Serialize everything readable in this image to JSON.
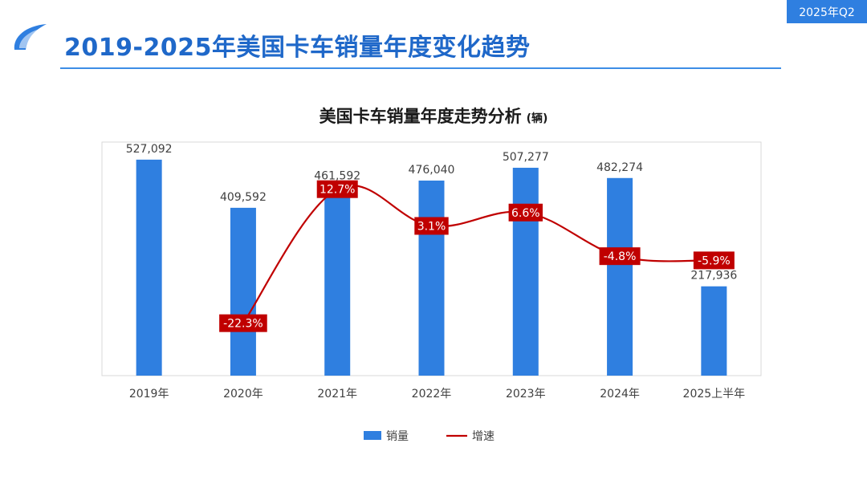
{
  "badge": "2025年Q2",
  "page_title": "2019-2025年美国卡车销量年度变化趋势",
  "chart_data": {
    "type": "bar",
    "title": "美国卡车销量年度走势分析",
    "unit": "(辆)",
    "categories": [
      "2019年",
      "2020年",
      "2021年",
      "2022年",
      "2023年",
      "2024年",
      "2025上半年"
    ],
    "series": [
      {
        "name": "销量",
        "type": "bar",
        "values": [
          527092,
          409592,
          461592,
          476040,
          507277,
          482274,
          217936
        ],
        "labels": [
          "527,092",
          "409,592",
          "461,592",
          "476,040",
          "507,277",
          "482,274",
          "217,936"
        ],
        "color": "#2f7fe0"
      },
      {
        "name": "增速",
        "type": "line",
        "values": [
          null,
          -22.3,
          12.7,
          3.1,
          6.6,
          -4.8,
          -5.9
        ],
        "labels": [
          "",
          "-22.3%",
          "12.7%",
          "3.1%",
          "6.6%",
          "-4.8%",
          "-5.9%"
        ],
        "color": "#c00000"
      }
    ],
    "legend_position": "bottom",
    "grid": false
  },
  "colors": {
    "accent": "#2f7fe0",
    "title": "#1f68c9",
    "line": "#c00000"
  }
}
